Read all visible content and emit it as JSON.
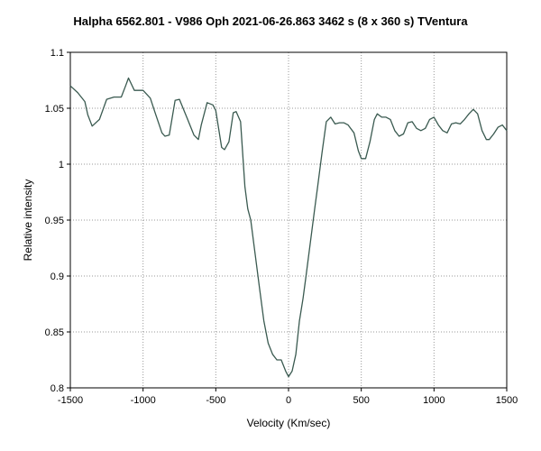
{
  "chart_data": {
    "type": "line",
    "title": "Halpha 6562.801 - V986 Oph   2021-06-26.863   3462 s (8 x 360 s)   TVentura",
    "xlabel": "Velocity (Km/sec)",
    "ylabel": "Relative intensity",
    "xlim": [
      -1500,
      1500
    ],
    "ylim": [
      0.8,
      1.1
    ],
    "xticks": [
      -1500,
      -1000,
      -500,
      0,
      500,
      1000,
      1500
    ],
    "xtick_labels": [
      "-1500",
      "-1000",
      "-500",
      "0",
      "500",
      "1000",
      "1500"
    ],
    "yticks": [
      0.8,
      0.85,
      0.9,
      0.95,
      1.0,
      1.05,
      1.1
    ],
    "ytick_labels": [
      "0.8",
      "0.85",
      "0.9",
      "0.95",
      "1",
      "1.05",
      "1.1"
    ],
    "grid": true,
    "line_color": "#3a5a50",
    "series": [
      {
        "x": [
          -1500,
          -1450,
          -1400,
          -1380,
          -1350,
          -1300,
          -1250,
          -1200,
          -1150,
          -1120,
          -1100,
          -1060,
          -1000,
          -950,
          -920,
          -870,
          -850,
          -820,
          -780,
          -750,
          -700,
          -650,
          -620,
          -600,
          -560,
          -520,
          -500,
          -460,
          -440,
          -410,
          -380,
          -360,
          -330,
          -300,
          -280,
          -260,
          -230,
          -200,
          -170,
          -140,
          -110,
          -80,
          -50,
          -20,
          0,
          25,
          50,
          75,
          100,
          120,
          150,
          180,
          200,
          230,
          260,
          290,
          320,
          350,
          380,
          410,
          450,
          480,
          500,
          530,
          560,
          590,
          610,
          640,
          670,
          700,
          730,
          760,
          790,
          820,
          850,
          880,
          910,
          940,
          970,
          1000,
          1030,
          1060,
          1090,
          1120,
          1150,
          1180,
          1210,
          1240,
          1270,
          1300,
          1330,
          1360,
          1380,
          1410,
          1440,
          1470,
          1500
        ],
        "y": [
          1.07,
          1.064,
          1.056,
          1.044,
          1.034,
          1.04,
          1.058,
          1.06,
          1.06,
          1.07,
          1.077,
          1.066,
          1.066,
          1.059,
          1.047,
          1.028,
          1.025,
          1.026,
          1.057,
          1.058,
          1.042,
          1.026,
          1.022,
          1.035,
          1.055,
          1.053,
          1.048,
          1.015,
          1.013,
          1.02,
          1.046,
          1.047,
          1.038,
          0.98,
          0.96,
          0.95,
          0.92,
          0.89,
          0.86,
          0.84,
          0.83,
          0.825,
          0.825,
          0.815,
          0.81,
          0.815,
          0.83,
          0.86,
          0.88,
          0.9,
          0.93,
          0.96,
          0.98,
          1.01,
          1.038,
          1.042,
          1.036,
          1.037,
          1.037,
          1.035,
          1.028,
          1.012,
          1.005,
          1.005,
          1.02,
          1.04,
          1.045,
          1.042,
          1.042,
          1.04,
          1.03,
          1.025,
          1.027,
          1.037,
          1.038,
          1.032,
          1.03,
          1.032,
          1.04,
          1.042,
          1.035,
          1.03,
          1.028,
          1.036,
          1.037,
          1.036,
          1.04,
          1.045,
          1.049,
          1.045,
          1.03,
          1.022,
          1.022,
          1.027,
          1.033,
          1.035,
          1.03
        ]
      }
    ]
  }
}
